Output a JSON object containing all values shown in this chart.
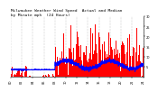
{
  "n_minutes": 1440,
  "ylim": [
    0,
    30
  ],
  "yticks": [
    5,
    10,
    15,
    20,
    25,
    30
  ],
  "bar_color": "#FF0000",
  "median_color": "#0000FF",
  "background_color": "#FFFFFF",
  "plot_bg_color": "#000000",
  "grid_color": "#888888",
  "title_fontsize": 3.2,
  "tick_fontsize": 2.5,
  "title_bg": "#000000",
  "title_color": "#FFFFFF",
  "title_text": "Milwaukee Weather Wind Speed  Actual and Median  by Minute mph  (24 Hours)"
}
